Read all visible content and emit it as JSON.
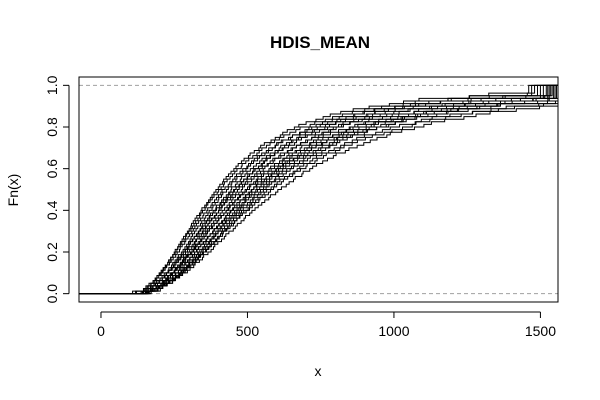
{
  "chart_data": {
    "type": "step",
    "title": "HDIS_MEAN",
    "xlabel": "x",
    "ylabel": "Fn(x)",
    "xlim": [
      -75,
      1560
    ],
    "ylim": [
      -0.04,
      1.04
    ],
    "x_ticks": [
      0,
      500,
      1000,
      1500
    ],
    "y_ticks": [
      0.0,
      0.2,
      0.4,
      0.6,
      0.8,
      1.0
    ],
    "reference_lines": [
      0.0,
      1.0
    ],
    "reference_line_style": "dashed gray",
    "grid": false,
    "legend": "none",
    "series_color": "#000000",
    "series_description": "about 20 empirical CDF step curves",
    "series": [
      {
        "start": 95,
        "median": 405,
        "end": 1480
      },
      {
        "start": 110,
        "median": 430,
        "end": 1520
      },
      {
        "start": 100,
        "median": 455,
        "end": 1540
      },
      {
        "start": 120,
        "median": 480,
        "end": 1500
      },
      {
        "start": 105,
        "median": 500,
        "end": 1550
      },
      {
        "start": 115,
        "median": 520,
        "end": 1560
      },
      {
        "start": 125,
        "median": 540,
        "end": 1530
      },
      {
        "start": 130,
        "median": 560,
        "end": 1560
      },
      {
        "start": 100,
        "median": 470,
        "end": 1510
      },
      {
        "start": 110,
        "median": 445,
        "end": 1490
      },
      {
        "start": 120,
        "median": 515,
        "end": 1545
      },
      {
        "start": 105,
        "median": 585,
        "end": 1560
      },
      {
        "start": 115,
        "median": 495,
        "end": 1525
      },
      {
        "start": 125,
        "median": 530,
        "end": 1555
      },
      {
        "start": 95,
        "median": 420,
        "end": 1470
      },
      {
        "start": 110,
        "median": 610,
        "end": 1560
      },
      {
        "start": 130,
        "median": 460,
        "end": 1535
      },
      {
        "start": 120,
        "median": 550,
        "end": 1560
      },
      {
        "start": 100,
        "median": 395,
        "end": 1460
      },
      {
        "start": 115,
        "median": 575,
        "end": 1560
      }
    ]
  }
}
